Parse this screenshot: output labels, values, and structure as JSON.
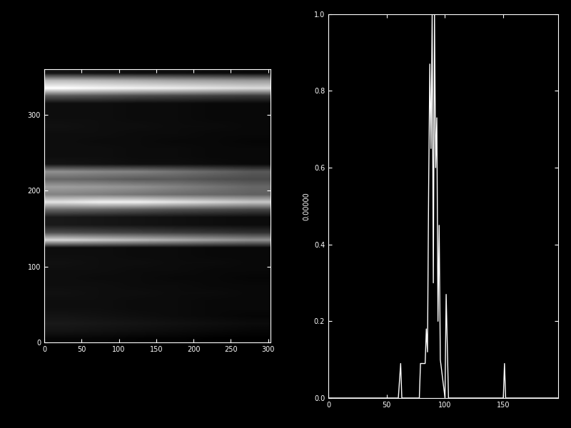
{
  "chart_data": [
    {
      "type": "heatmap",
      "xlim": [
        0,
        303
      ],
      "ylim": [
        0,
        360
      ],
      "xticks": [
        0,
        50,
        100,
        150,
        200,
        250,
        300
      ],
      "yticks": [
        0,
        100,
        200,
        300
      ],
      "cells": [
        [
          0.05,
          0.05,
          0.04,
          0.04,
          0.03,
          0.03
        ],
        [
          0.1,
          0.09,
          0.08,
          0.07,
          0.06,
          0.05
        ],
        [
          0.12,
          0.11,
          0.1,
          0.09,
          0.08,
          0.07
        ],
        [
          0.1,
          0.09,
          0.08,
          0.07,
          0.06,
          0.05
        ],
        [
          0.08,
          0.08,
          0.07,
          0.07,
          0.06,
          0.06
        ],
        [
          0.08,
          0.08,
          0.07,
          0.07,
          0.06,
          0.06
        ],
        [
          0.09,
          0.08,
          0.08,
          0.07,
          0.07,
          0.06
        ],
        [
          0.08,
          0.08,
          0.07,
          0.07,
          0.06,
          0.06
        ],
        [
          0.08,
          0.07,
          0.07,
          0.06,
          0.06,
          0.05
        ],
        [
          0.08,
          0.08,
          0.07,
          0.07,
          0.06,
          0.06
        ],
        [
          0.09,
          0.08,
          0.08,
          0.07,
          0.07,
          0.06
        ],
        [
          0.08,
          0.08,
          0.07,
          0.07,
          0.06,
          0.06
        ],
        [
          0.08,
          0.08,
          0.07,
          0.07,
          0.06,
          0.06
        ],
        [
          0.8,
          0.75,
          0.7,
          0.65,
          0.6,
          0.55
        ],
        [
          0.3,
          0.28,
          0.26,
          0.24,
          0.22,
          0.2
        ],
        [
          0.12,
          0.11,
          0.1,
          0.09,
          0.08,
          0.07
        ],
        [
          0.12,
          0.11,
          0.1,
          0.09,
          0.08,
          0.07
        ],
        [
          0.4,
          0.38,
          0.35,
          0.32,
          0.3,
          0.28
        ],
        [
          0.85,
          0.9,
          0.9,
          0.85,
          0.8,
          0.75
        ],
        [
          0.5,
          0.48,
          0.45,
          0.42,
          0.4,
          0.38
        ],
        [
          0.6,
          0.58,
          0.55,
          0.5,
          0.45,
          0.4
        ],
        [
          0.4,
          0.38,
          0.35,
          0.35,
          0.32,
          0.3
        ],
        [
          0.55,
          0.52,
          0.5,
          0.45,
          0.4,
          0.35
        ],
        [
          0.1,
          0.09,
          0.08,
          0.08,
          0.07,
          0.06
        ],
        [
          0.08,
          0.08,
          0.07,
          0.07,
          0.06,
          0.06
        ],
        [
          0.08,
          0.08,
          0.07,
          0.07,
          0.06,
          0.06
        ],
        [
          0.08,
          0.07,
          0.07,
          0.06,
          0.06,
          0.05
        ],
        [
          0.08,
          0.08,
          0.07,
          0.07,
          0.06,
          0.06
        ],
        [
          0.09,
          0.08,
          0.08,
          0.07,
          0.07,
          0.06
        ],
        [
          0.08,
          0.08,
          0.07,
          0.07,
          0.06,
          0.06
        ],
        [
          0.08,
          0.08,
          0.07,
          0.07,
          0.06,
          0.06
        ],
        [
          0.08,
          0.08,
          0.07,
          0.07,
          0.06,
          0.06
        ],
        [
          0.35,
          0.33,
          0.3,
          0.28,
          0.26,
          0.24
        ],
        [
          0.95,
          0.92,
          0.9,
          0.88,
          0.85,
          0.82
        ],
        [
          0.7,
          0.68,
          0.65,
          0.62,
          0.6,
          0.58
        ],
        [
          0.1,
          0.09,
          0.08,
          0.08,
          0.07,
          0.06
        ]
      ]
    },
    {
      "type": "line",
      "color": "#ffffff",
      "ylabel": "0.00000",
      "x": [
        0,
        60,
        62,
        63,
        78,
        79,
        83,
        84,
        85,
        86,
        87,
        88,
        89,
        90,
        91,
        92,
        93,
        94,
        95,
        96,
        98,
        100,
        101,
        103,
        150,
        151,
        152,
        197
      ],
      "values": [
        0,
        0,
        0.09,
        0,
        0,
        0.09,
        0.09,
        0.18,
        0.12,
        0.55,
        0.87,
        0.65,
        1.0,
        0.3,
        1.0,
        0.6,
        0.73,
        0.2,
        0.45,
        0.1,
        0.05,
        0,
        0.27,
        0,
        0,
        0.09,
        0,
        0
      ],
      "xlim": [
        0,
        197
      ],
      "ylim": [
        0,
        1
      ],
      "xticks": [
        0,
        50,
        100,
        150
      ],
      "yticks": [
        {
          "value": 0,
          "label": "0.0"
        },
        {
          "value": 0.2,
          "label": "0.2"
        },
        {
          "value": 0.4,
          "label": "0.4"
        },
        {
          "value": 0.6,
          "label": "0.6"
        },
        {
          "value": 0.8,
          "label": "0.8"
        },
        {
          "value": 1,
          "label": "1.0"
        }
      ]
    }
  ]
}
